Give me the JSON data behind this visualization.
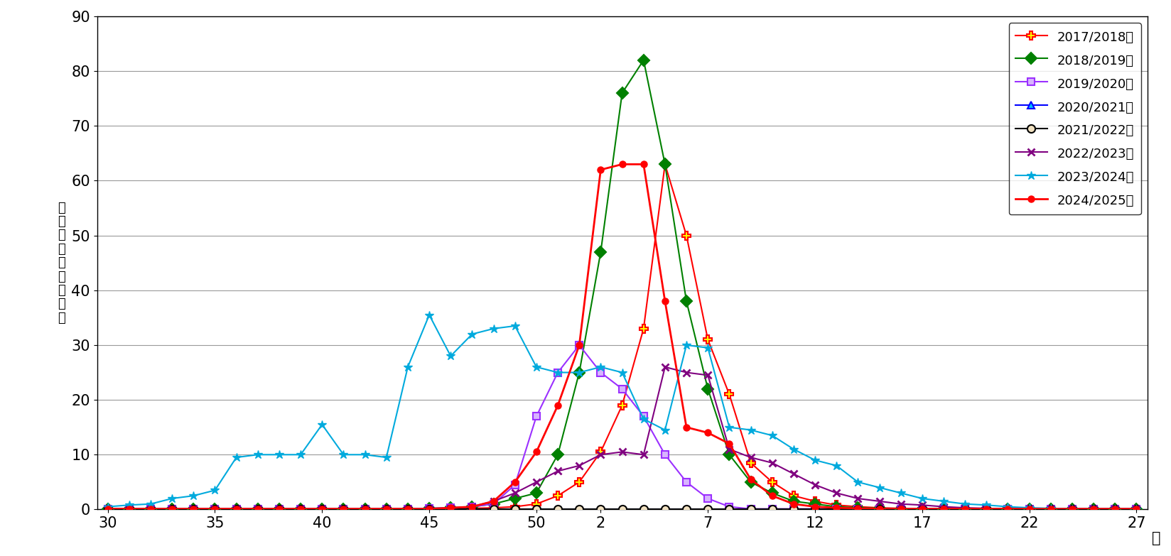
{
  "ylabel_chars": [
    "定",
    "点",
    "あ",
    "た",
    "り",
    "の",
    "報",
    "告",
    "数"
  ],
  "xlabel_suffix": "週",
  "ylim": [
    0,
    90
  ],
  "yticks": [
    0,
    10,
    20,
    30,
    40,
    50,
    60,
    70,
    80,
    90
  ],
  "xtick_positions": [
    0,
    5,
    10,
    15,
    20,
    23,
    28,
    33,
    38,
    43,
    48
  ],
  "xtick_display": [
    "30",
    "35",
    "40",
    "45",
    "50",
    "2",
    "7",
    "12",
    "17",
    "22",
    "27"
  ],
  "series": [
    {
      "label": "2017/2018年",
      "color": "#ff0000",
      "lw": 1.5,
      "marker": "P",
      "ms": 8,
      "mfc": "#ffff00",
      "mec": "#ff0000",
      "mew": 1.5,
      "y": [
        0.1,
        0.1,
        0.1,
        0.1,
        0.1,
        0.1,
        0.1,
        0.1,
        0.1,
        0.1,
        0.1,
        0.1,
        0.1,
        0.1,
        0.1,
        0.1,
        0.1,
        0.2,
        0.3,
        0.5,
        1.0,
        2.5,
        5.0,
        10.5,
        19.0,
        33.0,
        63.0,
        50.0,
        31.0,
        21.0,
        8.5,
        5.0,
        2.5,
        1.5,
        0.8,
        0.5,
        0.3,
        0.2,
        0.1,
        0.1,
        0.1,
        0.1,
        0.1,
        0.1,
        0.1,
        0.1,
        0.1,
        0.1,
        0.1
      ]
    },
    {
      "label": "2018/2019年",
      "color": "#008000",
      "lw": 1.5,
      "marker": "D",
      "ms": 8,
      "mfc": "#008000",
      "mec": "#008000",
      "mew": 1.5,
      "y": [
        0.1,
        0.1,
        0.1,
        0.1,
        0.1,
        0.1,
        0.1,
        0.1,
        0.1,
        0.1,
        0.1,
        0.1,
        0.1,
        0.1,
        0.1,
        0.2,
        0.3,
        0.5,
        1.0,
        2.0,
        3.0,
        10.0,
        25.0,
        47.0,
        76.0,
        82.0,
        63.0,
        38.0,
        22.0,
        10.0,
        5.0,
        3.0,
        1.5,
        1.0,
        0.5,
        0.3,
        0.2,
        0.1,
        0.1,
        0.1,
        0.1,
        0.1,
        0.1,
        0.1,
        0.1,
        0.1,
        0.1,
        0.1,
        0.1
      ]
    },
    {
      "label": "2019/2020年",
      "color": "#9b30ff",
      "lw": 1.5,
      "marker": "s",
      "ms": 7,
      "mfc": "#d8b4fe",
      "mec": "#9b30ff",
      "mew": 1.5,
      "y": [
        0.1,
        0.1,
        0.1,
        0.1,
        0.1,
        0.1,
        0.1,
        0.1,
        0.1,
        0.1,
        0.1,
        0.1,
        0.1,
        0.1,
        0.1,
        0.2,
        0.3,
        0.5,
        1.0,
        4.5,
        17.0,
        25.0,
        30.0,
        25.0,
        22.0,
        17.0,
        10.0,
        5.0,
        2.0,
        0.5,
        0.1,
        0.1,
        0.1,
        0.1,
        0.1,
        0.1,
        0.1,
        0.1,
        0.1,
        0.1,
        0.1,
        0.1,
        0.1,
        0.1,
        0.1,
        0.1,
        0.1,
        0.1,
        0.1
      ]
    },
    {
      "label": "2020/2021年",
      "color": "#0000ff",
      "lw": 1.5,
      "marker": "^",
      "ms": 7,
      "mfc": "#00bfff",
      "mec": "#0000ff",
      "mew": 1.5,
      "y": [
        0.05,
        0.05,
        0.05,
        0.05,
        0.05,
        0.05,
        0.05,
        0.05,
        0.05,
        0.05,
        0.05,
        0.05,
        0.05,
        0.05,
        0.05,
        0.05,
        0.05,
        0.05,
        0.05,
        0.05,
        0.05,
        0.05,
        0.05,
        0.05,
        0.05,
        0.05,
        0.05,
        0.05,
        0.05,
        0.05,
        0.05,
        0.05,
        0.05,
        0.05,
        0.05,
        0.05,
        0.05,
        0.05,
        0.05,
        0.05,
        0.05,
        0.05,
        0.05,
        0.05,
        0.05,
        0.05,
        0.05,
        0.05,
        0.05
      ]
    },
    {
      "label": "2021/2022年",
      "color": "#000000",
      "lw": 1.5,
      "marker": "o",
      "ms": 8,
      "mfc": "#f0e0c0",
      "mec": "#000000",
      "mew": 1.5,
      "y": [
        0.05,
        0.05,
        0.05,
        0.05,
        0.05,
        0.05,
        0.05,
        0.05,
        0.05,
        0.05,
        0.05,
        0.05,
        0.05,
        0.05,
        0.05,
        0.05,
        0.05,
        0.05,
        0.05,
        0.05,
        0.05,
        0.05,
        0.05,
        0.05,
        0.05,
        0.05,
        0.05,
        0.05,
        0.05,
        0.05,
        0.05,
        0.05,
        0.05,
        0.05,
        0.05,
        0.05,
        0.05,
        0.05,
        0.05,
        0.05,
        0.05,
        0.05,
        0.05,
        0.05,
        0.05,
        0.05,
        0.05,
        0.05,
        0.05
      ]
    },
    {
      "label": "2022/2023年",
      "color": "#800080",
      "lw": 1.5,
      "marker": "x",
      "ms": 7,
      "mfc": "#800080",
      "mec": "#800080",
      "mew": 2.0,
      "y": [
        0.1,
        0.1,
        0.1,
        0.1,
        0.1,
        0.1,
        0.1,
        0.1,
        0.1,
        0.1,
        0.1,
        0.1,
        0.1,
        0.1,
        0.1,
        0.1,
        0.2,
        0.5,
        1.5,
        3.0,
        5.0,
        7.0,
        8.0,
        10.0,
        10.5,
        10.0,
        26.0,
        25.0,
        24.5,
        11.0,
        9.5,
        8.5,
        6.5,
        4.5,
        3.0,
        2.0,
        1.5,
        1.0,
        0.8,
        0.5,
        0.3,
        0.2,
        0.1,
        0.1,
        0.1,
        0.1,
        0.1,
        0.1,
        0.1
      ]
    },
    {
      "label": "2023/2024年",
      "color": "#00aadd",
      "lw": 1.5,
      "marker": "*",
      "ms": 9,
      "mfc": "#00aadd",
      "mec": "#00aadd",
      "mew": 1.0,
      "y": [
        0.5,
        0.8,
        1.0,
        2.0,
        2.5,
        3.5,
        9.5,
        10.0,
        10.0,
        10.0,
        15.5,
        10.0,
        10.0,
        9.5,
        26.0,
        35.5,
        28.0,
        32.0,
        33.0,
        33.5,
        26.0,
        25.0,
        25.0,
        26.0,
        25.0,
        16.5,
        14.5,
        30.0,
        29.5,
        15.0,
        14.5,
        13.5,
        11.0,
        9.0,
        8.0,
        5.0,
        4.0,
        3.0,
        2.0,
        1.5,
        1.0,
        0.8,
        0.5,
        0.3,
        0.2,
        0.1,
        0.1,
        0.1,
        0.1
      ]
    },
    {
      "label": "2024/2025年",
      "color": "#ff0000",
      "lw": 2.0,
      "marker": "o",
      "ms": 6,
      "mfc": "#ff0000",
      "mec": "#ff0000",
      "mew": 1.5,
      "y": [
        0.1,
        0.1,
        0.1,
        0.1,
        0.1,
        0.1,
        0.1,
        0.1,
        0.1,
        0.1,
        0.1,
        0.1,
        0.1,
        0.1,
        0.1,
        0.1,
        0.3,
        0.5,
        1.5,
        5.0,
        10.5,
        19.0,
        30.0,
        62.0,
        63.0,
        63.0,
        38.0,
        15.0,
        14.0,
        12.0,
        5.5,
        2.5,
        1.0,
        0.5,
        0.3,
        0.2,
        0.1,
        0.1,
        0.1,
        0.1,
        0.1,
        0.1,
        0.1,
        0.1,
        0.1,
        0.1,
        0.1,
        0.1,
        0.1
      ]
    }
  ],
  "background_color": "#ffffff",
  "grid_color": "#999999",
  "border_color": "#000000"
}
